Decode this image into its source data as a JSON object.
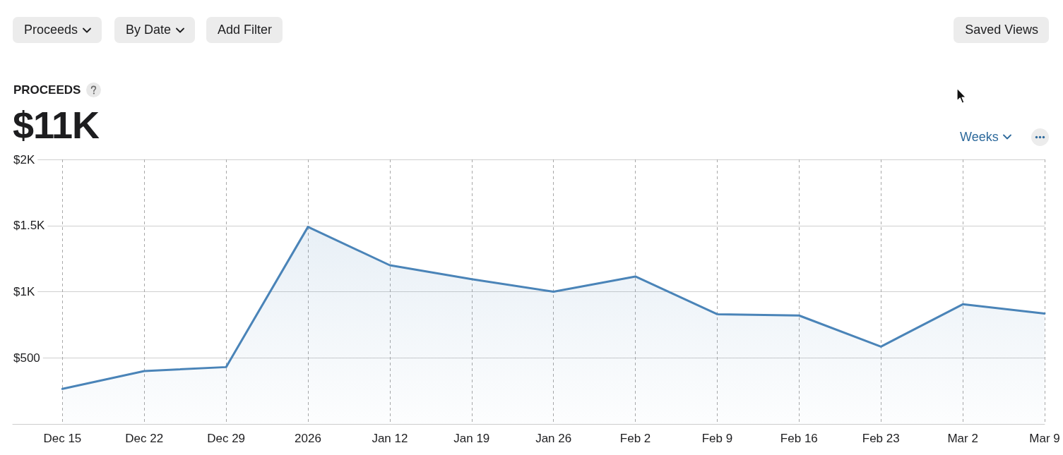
{
  "chart_data": {
    "type": "area",
    "title": "PROCEEDS",
    "subtitle": "$11K",
    "annotations": [
      "Proceeds",
      "By Date",
      "Add Filter",
      "Saved Views",
      "Weeks"
    ],
    "x": [
      "2025-12-15",
      "2025-12-22",
      "2025-12-29",
      "2026-01-05",
      "2026-01-12",
      "2026-01-19",
      "2026-01-26",
      "2026-02-02",
      "2026-02-09",
      "2026-02-16",
      "2026-02-23",
      "2026-03-02",
      "2026-03-09"
    ],
    "values": [
      265,
      400,
      430,
      1490,
      1200,
      1095,
      1000,
      1115,
      830,
      820,
      585,
      905,
      835
    ],
    "color": "#4a84b8",
    "xlim": [
      "2025-12-10T18:00",
      "2026-03-09"
    ],
    "xticks": [
      {
        "value": "2025-12-15",
        "label": "Dec 15"
      },
      {
        "value": "2025-12-22",
        "label": "Dec 22"
      },
      {
        "value": "2025-12-29",
        "label": "Dec 29"
      },
      {
        "value": "2026-01-05",
        "label": "2026"
      },
      {
        "value": "2026-01-12",
        "label": "Jan 12"
      },
      {
        "value": "2026-01-19",
        "label": "Jan 19"
      },
      {
        "value": "2026-01-26",
        "label": "Jan 26"
      },
      {
        "value": "2026-02-02",
        "label": "Feb 2"
      },
      {
        "value": "2026-02-09",
        "label": "Feb 9"
      },
      {
        "value": "2026-02-16",
        "label": "Feb 16"
      },
      {
        "value": "2026-02-23",
        "label": "Feb 23"
      },
      {
        "value": "2026-03-02",
        "label": "Mar 2"
      },
      {
        "value": "2026-03-09",
        "label": "Mar 9"
      }
    ],
    "ylim": [
      0,
      2000
    ],
    "yticks": [
      {
        "value": 0,
        "label": null
      },
      {
        "value": 500,
        "label": "$500"
      },
      {
        "value": 1000,
        "label": "$1K"
      },
      {
        "value": 1500,
        "label": "$1.5K"
      },
      {
        "value": 2000,
        "label": "$2K"
      }
    ],
    "grid": true,
    "marker": "none"
  }
}
